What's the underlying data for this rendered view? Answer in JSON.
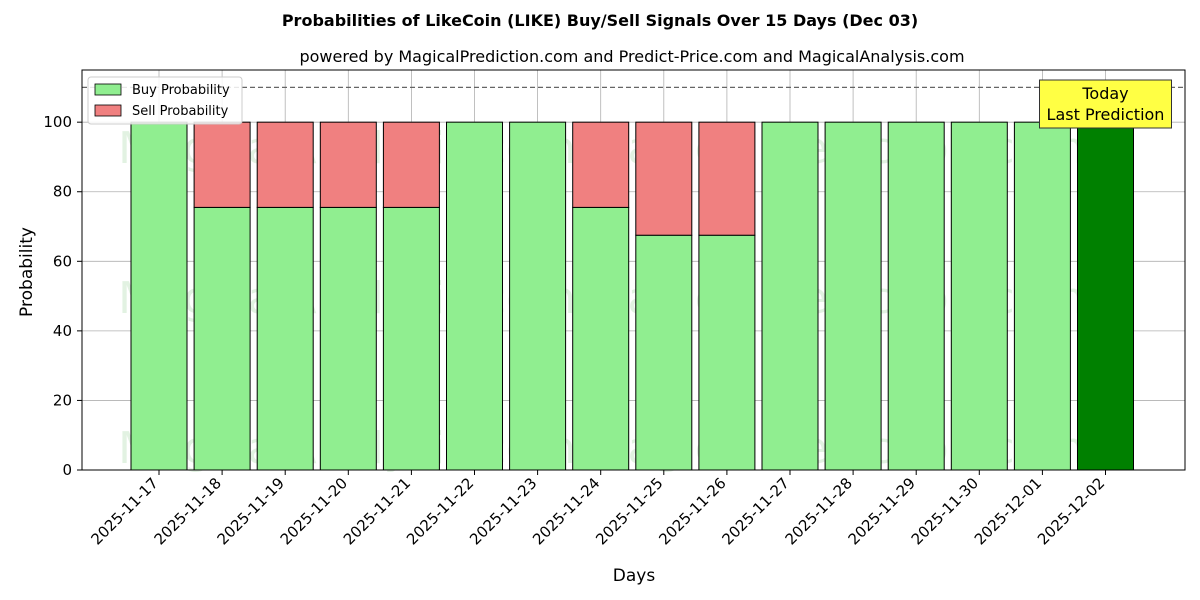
{
  "chart_data": {
    "type": "bar",
    "stacked": true,
    "title": "Probabilities of LikeCoin (LIKE) Buy/Sell Signals Over 15 Days (Dec 03)",
    "subtitle": "powered by MagicalPrediction.com and Predict-Price.com and MagicalAnalysis.com",
    "xlabel": "Days",
    "ylabel": "Probability",
    "ylim": [
      0,
      115
    ],
    "yticks": [
      0,
      20,
      40,
      60,
      80,
      100
    ],
    "reference_line": 110,
    "grid": true,
    "legend_position": "top-left",
    "categories": [
      "2025-11-17",
      "2025-11-18",
      "2025-11-19",
      "2025-11-20",
      "2025-11-21",
      "2025-11-22",
      "2025-11-23",
      "2025-11-24",
      "2025-11-25",
      "2025-11-26",
      "2025-11-27",
      "2025-11-28",
      "2025-11-29",
      "2025-11-30",
      "2025-12-01",
      "2025-12-02"
    ],
    "series": [
      {
        "name": "Buy Probability",
        "color": "#90ee90",
        "values": [
          100,
          75.5,
          75.5,
          75.5,
          75.5,
          100,
          100,
          75.5,
          67.5,
          67.5,
          100,
          100,
          100,
          100,
          100,
          100
        ]
      },
      {
        "name": "Sell Probability",
        "color": "#f08080",
        "values": [
          0,
          24.5,
          24.5,
          24.5,
          24.5,
          0,
          0,
          24.5,
          32.5,
          32.5,
          0,
          0,
          0,
          0,
          0,
          0
        ]
      }
    ],
    "highlight": {
      "index": 15,
      "color": "#008000",
      "annotation": "Today\nLast Prediction",
      "annotation_bg": "#ffff44"
    },
    "watermarks": [
      "MagicalAnalysis.com",
      "MagicalPrediction.com"
    ]
  }
}
